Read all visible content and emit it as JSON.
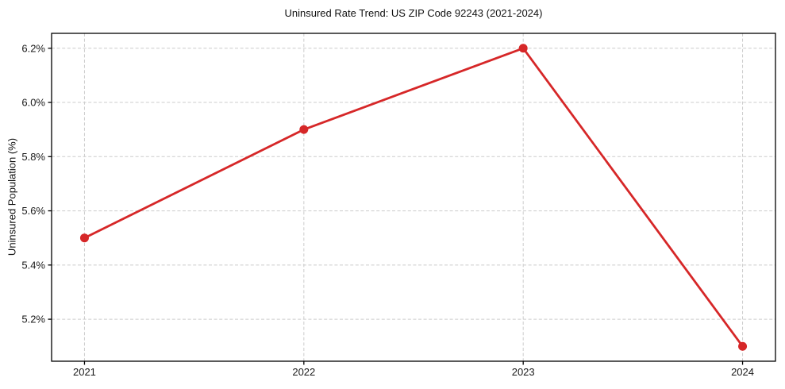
{
  "chart": {
    "title": "Uninsured Rate Trend: US ZIP Code 92243 (2021-2024)",
    "ylabel": "Uninsured Population (%)"
  },
  "chart_data": {
    "type": "line",
    "title": "Uninsured Rate Trend: US ZIP Code 92243 (2021-2024)",
    "xlabel": "",
    "ylabel": "Uninsured Population (%)",
    "x": [
      2021,
      2022,
      2023,
      2024
    ],
    "values": [
      5.5,
      5.9,
      6.2,
      5.1
    ],
    "x_tick_labels": [
      "2021",
      "2022",
      "2023",
      "2024"
    ],
    "y_ticks": [
      5.2,
      5.4,
      5.6,
      5.8,
      6.0,
      6.2
    ],
    "y_tick_labels": [
      "5.2%",
      "5.4%",
      "5.6%",
      "5.8%",
      "6.0%",
      "6.2%"
    ],
    "xlim": [
      2020.85,
      2024.15
    ],
    "ylim": [
      5.045,
      6.255
    ],
    "grid": true,
    "grid_style": "dashed",
    "legend": false,
    "colors": {
      "line": "#d62728",
      "marker": "#d62728",
      "grid": "#cccccc",
      "axis": "#000000",
      "text": "#1a1a1a",
      "background": "#ffffff"
    }
  }
}
